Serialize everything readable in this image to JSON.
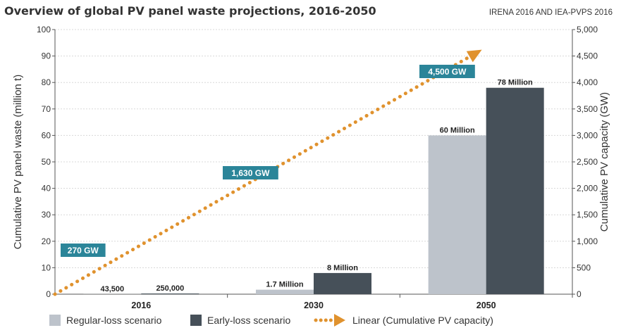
{
  "header": {
    "title": "Overview of global PV panel waste projections, 2016-2050",
    "source": "IRENA 2016 AND IEA-PVPS 2016"
  },
  "chart_data": {
    "type": "bar",
    "categories": [
      "2016",
      "2030",
      "2050"
    ],
    "series": [
      {
        "name": "Regular-loss scenario",
        "color": "#bdc3cb",
        "values": [
          0.0435,
          1.7,
          60
        ],
        "labels": [
          "43,500",
          "1.7 Million",
          "60 Million"
        ]
      },
      {
        "name": "Early-loss scenario",
        "color": "#465059",
        "values": [
          0.25,
          8,
          78
        ],
        "labels": [
          "250,000",
          "8 Million",
          "78 Million"
        ]
      }
    ],
    "line": {
      "name": "Linear (Cumulative PV capacity)",
      "color": "#e0922e",
      "style": "dotted",
      "axis": "right",
      "points": [
        {
          "x": 2016,
          "y": 0
        },
        {
          "x": 2050,
          "y": 4500
        }
      ],
      "callouts": [
        {
          "x": 2016,
          "y": 270,
          "label": "270 GW"
        },
        {
          "x": 2030,
          "y": 1630,
          "label": "1,630 GW"
        },
        {
          "x": 2050,
          "y": 4500,
          "label": "4,500 GW"
        }
      ],
      "callout_color": "#2b8599"
    },
    "ylabel": "Cumulative PV panel waste (million t)",
    "ylim": [
      0,
      100
    ],
    "yticks": [
      "0",
      "10",
      "20",
      "30",
      "40",
      "50",
      "60",
      "70",
      "80",
      "90",
      "100"
    ],
    "y2label": "Cumulative PV capacity (GW)",
    "y2lim": [
      0,
      5000
    ],
    "y2ticks": [
      "0",
      "500",
      "1,000",
      "1,500",
      "2,000",
      "2,500",
      "3,000",
      "3,500",
      "4,000",
      "4,500",
      "5,000"
    ],
    "grid": "horizontal",
    "legend_position": "bottom"
  }
}
